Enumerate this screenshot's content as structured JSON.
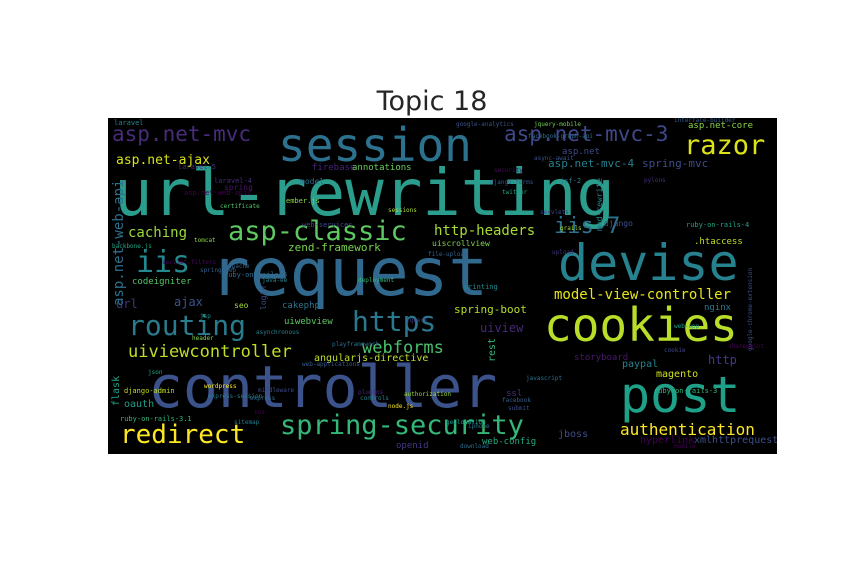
{
  "title": "Topic 18",
  "colors": {
    "background": "#000000",
    "title": "#262626"
  },
  "words": [
    {
      "text": "url-rewriting",
      "color": "#2a9d8c"
    },
    {
      "text": "request",
      "color": "#31688e"
    },
    {
      "text": "controller",
      "color": "#3b528b"
    },
    {
      "text": "session",
      "color": "#2c728e"
    },
    {
      "text": "devise",
      "color": "#26828e"
    },
    {
      "text": "cookies",
      "color": "#b8de29"
    },
    {
      "text": "post",
      "color": "#1fa088"
    },
    {
      "text": "asp-classic",
      "color": "#5ec962"
    },
    {
      "text": "routing",
      "color": "#287c8e"
    },
    {
      "text": "https",
      "color": "#2a788e"
    },
    {
      "text": "spring-security",
      "color": "#35b779"
    },
    {
      "text": "redirect",
      "color": "#fde725"
    },
    {
      "text": "razor",
      "color": "#dde318"
    },
    {
      "text": "iis",
      "color": "#23898e"
    },
    {
      "text": "asp.net-mvc",
      "color": "#472c7a"
    },
    {
      "text": "asp.net-mvc-3",
      "color": "#3f4889"
    },
    {
      "text": "iis-7",
      "color": "#2c728e"
    },
    {
      "text": "uiviewcontroller",
      "color": "#bddf26"
    },
    {
      "text": "webforms",
      "color": "#4ac16d"
    },
    {
      "text": "authentication",
      "color": "#fde725"
    },
    {
      "text": "model-view-controller",
      "color": "#e5e419"
    },
    {
      "text": "asp.net-ajax",
      "color": "#d8e219"
    },
    {
      "text": "http-headers",
      "color": "#a8db34"
    },
    {
      "text": "caching",
      "color": "#9bd93c"
    },
    {
      "text": "asp.net-web-api",
      "color": "#2d708e"
    },
    {
      "text": "asp.net-mvc-4",
      "color": "#277f8e"
    },
    {
      "text": "spring-mvc",
      "color": "#3e4c8a"
    },
    {
      "text": "zend-framework",
      "color": "#7ad151"
    },
    {
      "text": "ajax",
      "color": "#3b528b"
    },
    {
      "text": "url",
      "color": "#46327e"
    },
    {
      "text": "uiview",
      "color": "#482878"
    },
    {
      "text": "spring-boot",
      "color": "#b5de2b"
    },
    {
      "text": "angularjs-directive",
      "color": "#bddf26"
    },
    {
      "text": "rest",
      "color": "#35b779"
    },
    {
      "text": "http",
      "color": "#443983"
    },
    {
      "text": "magento",
      "color": "#d2e21b"
    },
    {
      "text": "paypal",
      "color": "#26828e"
    },
    {
      "text": "xmlhttprequest",
      "color": "#3d4e8a"
    },
    {
      "text": "hyperlink",
      "color": "#440154"
    },
    {
      "text": "jboss",
      "color": "#3e4c8a"
    },
    {
      "text": "web-config",
      "color": "#23a983"
    },
    {
      "text": "openid",
      "color": "#453882"
    },
    {
      "text": "oauth",
      "color": "#1f9e89"
    },
    {
      "text": "flask",
      "color": "#20a486"
    },
    {
      "text": "ssl",
      "color": "#472a7a"
    },
    {
      "text": "codeigniter",
      "color": "#54c568"
    },
    {
      "text": "cakephp",
      "color": "#2c728e"
    },
    {
      "text": "uiwebview",
      "color": "#5ec962"
    },
    {
      "text": "storyboard",
      "color": "#481a6c"
    },
    {
      "text": "nginx",
      "color": "#2a788e"
    },
    {
      "text": ".htaccess",
      "color": "#c0df25"
    },
    {
      "text": "uiscrollview",
      "color": "#7fd34e"
    },
    {
      "text": "firebase",
      "color": "#482374"
    },
    {
      "text": "annotations",
      "color": "#6ccd5a"
    },
    {
      "text": "asp.net",
      "color": "#3e4a89"
    },
    {
      "text": "asp.net-core",
      "color": "#86d549"
    },
    {
      "text": "spring",
      "color": "#481467"
    },
    {
      "text": "model",
      "color": "#2c728e"
    },
    {
      "text": "mod-rewrite",
      "color": "#26828e"
    },
    {
      "text": "django",
      "color": "#3b528b"
    },
    {
      "text": "login",
      "color": "#3e4c8a"
    },
    {
      "text": "seo",
      "color": "#a0da39"
    },
    {
      "text": "printing",
      "color": "#238a8d"
    },
    {
      "text": "ember.js",
      "color": "#90d743"
    },
    {
      "text": "jsf-2",
      "color": "#2a788e"
    },
    {
      "text": "laravel-4",
      "color": "#472d7b"
    },
    {
      "text": "laravel-5",
      "color": "#46337f"
    },
    {
      "text": "laravel",
      "color": "#25838e"
    },
    {
      "text": "web-services",
      "color": "#3f4788"
    },
    {
      "text": "asp.net-web-api2",
      "color": "#440154"
    },
    {
      "text": "ruby-on-rails-4",
      "color": "#1fa287"
    },
    {
      "text": "ruby-on-rails-3",
      "color": "#31b57b"
    },
    {
      "text": "ruby-on-rails-3.1",
      "color": "#35b779"
    },
    {
      "text": "ruby-on-rails-5",
      "color": "#2e6f8e"
    },
    {
      "text": "django-admin",
      "color": "#c2df23"
    },
    {
      "text": "backbone.js",
      "color": "#22a884"
    },
    {
      "text": "apache",
      "color": "#33638d"
    },
    {
      "text": "jsp",
      "color": "#20928c"
    },
    {
      "text": "jquery-mobile",
      "color": "#73d056"
    },
    {
      "text": "facebook-graph-api",
      "color": "#2f6c8e"
    },
    {
      "text": "google-analytics",
      "color": "#3a548c"
    },
    {
      "text": "interface-builder",
      "color": "#365c8d"
    },
    {
      "text": "playframework",
      "color": "#2e6e8e"
    },
    {
      "text": "asynchronous",
      "color": "#277f8e"
    },
    {
      "text": "wordpress",
      "color": "#fde725"
    },
    {
      "text": "geolocation",
      "color": "#1e9b8a"
    },
    {
      "text": "iphone",
      "color": "#2b758e"
    },
    {
      "text": "security",
      "color": "#46085c"
    },
    {
      "text": "certificate",
      "color": "#50c46a"
    },
    {
      "text": "sessions",
      "color": "#a5db36"
    },
    {
      "text": "servlets",
      "color": "#3f4889"
    },
    {
      "text": "header",
      "color": "#81d34d"
    },
    {
      "text": "json",
      "color": "#22a785"
    },
    {
      "text": "twitter",
      "color": "#20a386"
    },
    {
      "text": "facebook",
      "color": "#355f8d"
    },
    {
      "text": "google-chrome-extension",
      "color": "#3b528b"
    },
    {
      "text": "cookie",
      "color": "#3f4788"
    },
    {
      "text": "pylons",
      "color": "#46327e"
    },
    {
      "text": "mobile",
      "color": "#440154"
    },
    {
      "text": "download",
      "color": "#2e6f8e"
    },
    {
      "text": "django-forms",
      "color": "#38588c"
    },
    {
      "text": "grails",
      "color": "#a8db34"
    },
    {
      "text": "file-upload",
      "color": "#33638d"
    },
    {
      "text": "ios",
      "color": "#440154"
    },
    {
      "text": "java-ee",
      "color": "#25848e"
    },
    {
      "text": "tomcat",
      "color": "#8bd646"
    },
    {
      "text": "express",
      "color": "#2e6e8e"
    },
    {
      "text": "async-await",
      "color": "#3b528b"
    },
    {
      "text": "upload",
      "color": "#46337f"
    },
    {
      "text": "plugins",
      "color": "#482878"
    },
    {
      "text": "controls",
      "color": "#26828e"
    },
    {
      "text": "web-applications",
      "color": "#365d8d"
    },
    {
      "text": "middleware",
      "color": "#3f4889"
    },
    {
      "text": "authorization",
      "color": "#9bd93c"
    },
    {
      "text": "node.js",
      "color": "#fde725"
    },
    {
      "text": "sharepoint",
      "color": "#440154"
    },
    {
      "text": "sitemap",
      "color": "#287d8e"
    },
    {
      "text": "spring-web",
      "color": "#34618d"
    },
    {
      "text": "jquery",
      "color": "#443983"
    },
    {
      "text": "deployment",
      "color": "#35b779"
    },
    {
      "text": "express-session",
      "color": "#287c8e"
    },
    {
      "text": "web-app",
      "color": "#1fa088"
    },
    {
      "text": "submit",
      "color": "#3d4d8a"
    },
    {
      "text": "servlet-filters",
      "color": "#46085c"
    },
    {
      "text": "javascript",
      "color": "#2c728e"
    }
  ]
}
